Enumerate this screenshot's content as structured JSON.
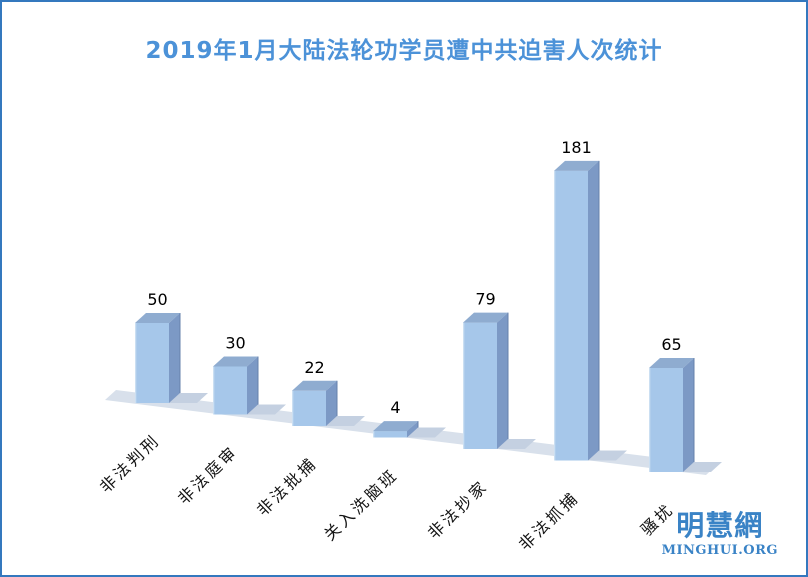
{
  "frame": {
    "border_color": "#3478BE",
    "background": "#FFFFFF"
  },
  "title": {
    "text": "2019年1月大陆法轮功学员遭中共迫害人次统计",
    "color": "#4C92D8"
  },
  "watermark": {
    "cjk": "明慧網",
    "latin": "MINGHUI.ORG",
    "color": "#3A83C6"
  },
  "chart_data": {
    "type": "bar",
    "style": "3d",
    "title": "2019年1月大陆法轮功学员遭中共迫害人次统计",
    "categories": [
      "非法判刑",
      "非法庭审",
      "非法批捕",
      "关入洗脑班",
      "非法抄家",
      "非法抓捕",
      "骚扰"
    ],
    "values": [
      50,
      30,
      22,
      4,
      79,
      181,
      65
    ],
    "xlabel": "",
    "ylabel": "",
    "legend": false,
    "grid": false,
    "axes_visible": false,
    "data_labels": true,
    "ylim": [
      0,
      200
    ],
    "colors": {
      "bar_front": "#A6C7EA",
      "bar_top": "#8FACD0",
      "bar_side": "#7C99C5",
      "bar_edge": "#6681AB",
      "bar_highlight": "#CBDFF2",
      "floor": "#D8E0EB",
      "shadow": "#C4D0E1",
      "label": "#000000"
    }
  }
}
